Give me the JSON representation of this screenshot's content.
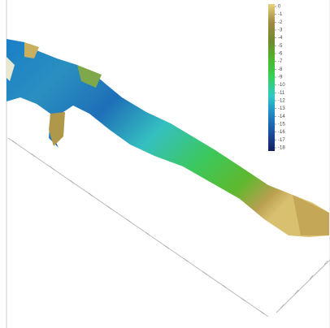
{
  "chart_data": {
    "type": "surface",
    "colorbar": {
      "lim": [
        -18,
        0
      ],
      "ticks": [
        0,
        -1,
        -2,
        -3,
        -4,
        -5,
        -6,
        -7,
        -8,
        -9,
        -10,
        -11,
        -12,
        -13,
        -14,
        -15,
        -16,
        -17,
        -18
      ],
      "colors": [
        "#e8d27a",
        "#a08a45",
        "#6e8a2e",
        "#4fb52e",
        "#35d25a",
        "#2ec9c9",
        "#1e86c4",
        "#1b4fa0",
        "#151f60"
      ]
    }
  }
}
